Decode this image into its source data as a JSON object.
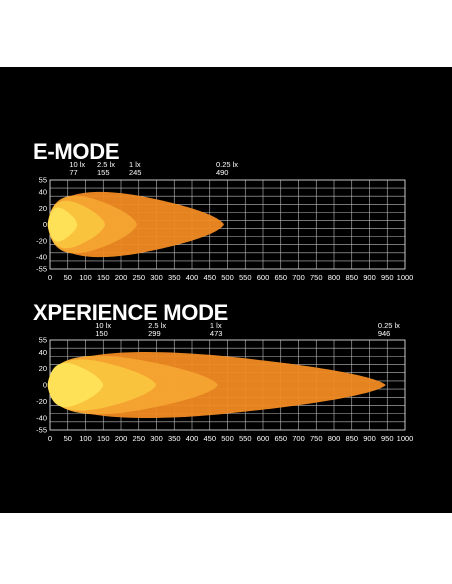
{
  "chart_data": [
    {
      "type": "area",
      "title": "E-MODE",
      "xlim": [
        0,
        1000
      ],
      "ylim": [
        -55,
        55
      ],
      "xticks": [
        0,
        50,
        100,
        150,
        200,
        250,
        300,
        350,
        400,
        450,
        500,
        550,
        600,
        650,
        700,
        750,
        800,
        850,
        900,
        950,
        1000
      ],
      "yticks": [
        55,
        40,
        20,
        0,
        -20,
        -40,
        -55
      ],
      "grid": true,
      "isolux": [
        {
          "lux": "10 lx",
          "distance": "77",
          "x": 77
        },
        {
          "lux": "2.5 lx",
          "distance": "155",
          "x": 155
        },
        {
          "lux": "1 lx",
          "distance": "245",
          "x": 245
        },
        {
          "lux": "0.25 lx",
          "distance": "490",
          "x": 490
        }
      ],
      "colors": [
        "#f08a22",
        "#f5a431",
        "#f9c53f",
        "#ffe35a"
      ]
    },
    {
      "type": "area",
      "title": "XPERIENCE MODE",
      "xlim": [
        0,
        1000
      ],
      "ylim": [
        -55,
        55
      ],
      "xticks": [
        0,
        50,
        100,
        150,
        200,
        250,
        300,
        350,
        400,
        450,
        500,
        550,
        600,
        650,
        700,
        750,
        800,
        850,
        900,
        950,
        1000
      ],
      "yticks": [
        55,
        40,
        20,
        0,
        -20,
        -40,
        -55
      ],
      "grid": true,
      "isolux": [
        {
          "lux": "10 lx",
          "distance": "150",
          "x": 150
        },
        {
          "lux": "2.5 lx",
          "distance": "299",
          "x": 299
        },
        {
          "lux": "1 lx",
          "distance": "473",
          "x": 473
        },
        {
          "lux": "0.25 lx",
          "distance": "946",
          "x": 946
        }
      ],
      "colors": [
        "#f08a22",
        "#f5a431",
        "#f9c53f",
        "#ffe35a"
      ]
    }
  ]
}
